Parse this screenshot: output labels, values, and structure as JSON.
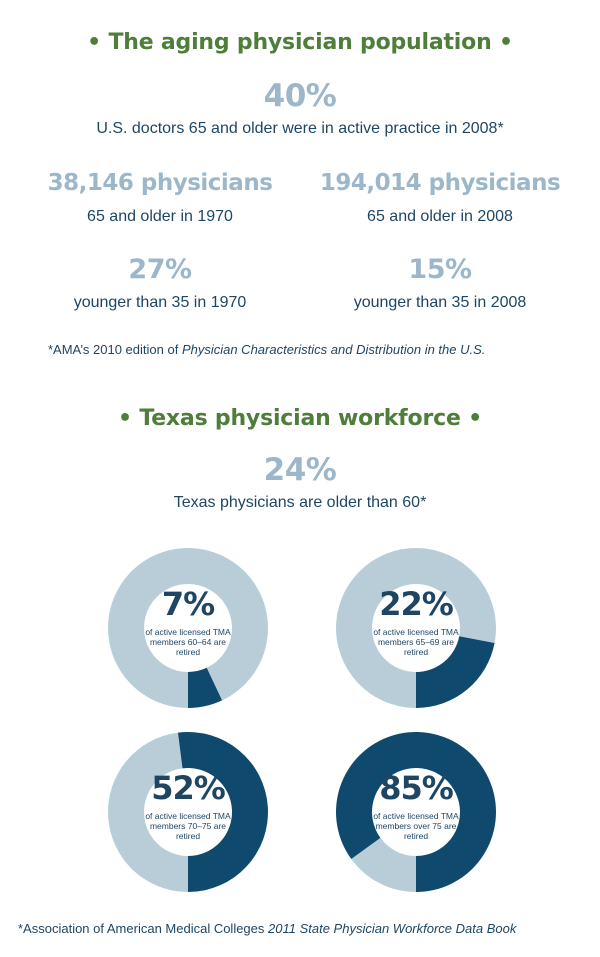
{
  "section1": {
    "title": "• The aging physician population •",
    "headline": {
      "value": "40%",
      "caption": "U.S. doctors 65 and older were in active practice in 2008*"
    },
    "stats": [
      {
        "value": "38,146 physicians",
        "caption": "65 and older in 1970"
      },
      {
        "value": "194,014 physicians",
        "caption": "65 and older in 2008"
      },
      {
        "value": "27%",
        "caption": "younger than 35 in 1970"
      },
      {
        "value": "15%",
        "caption": "younger than 35 in 2008"
      }
    ],
    "footnote_prefix": "*AMA’s 2010 edition of ",
    "footnote_italic": "Physician Characteristics and Distribution in the U.S."
  },
  "section2": {
    "title": "• Texas physician workforce  •",
    "headline": {
      "value": "24%",
      "caption": "Texas physicians are older than 60*"
    },
    "footnote_prefix": "*Association of American Medical Colleges ",
    "footnote_italic": "2011 State Physician Workforce Data Book"
  },
  "colors": {
    "dark": "#0f4a6e",
    "light": "#b9cdd9",
    "green": "#4f7d3a",
    "stat": "#9cb7c9"
  },
  "chart_data": [
    {
      "type": "pie",
      "value": 7,
      "label": "7%",
      "caption": "of active licensed TMA members 60–64 are retired"
    },
    {
      "type": "pie",
      "value": 22,
      "label": "22%",
      "caption": "of active licensed TMA members 65–69 are retired"
    },
    {
      "type": "pie",
      "value": 52,
      "label": "52%",
      "caption": "of active licensed TMA members 70–75 are retired"
    },
    {
      "type": "pie",
      "value": 85,
      "label": "85%",
      "caption": "of active licensed TMA members over 75 are retired"
    }
  ]
}
